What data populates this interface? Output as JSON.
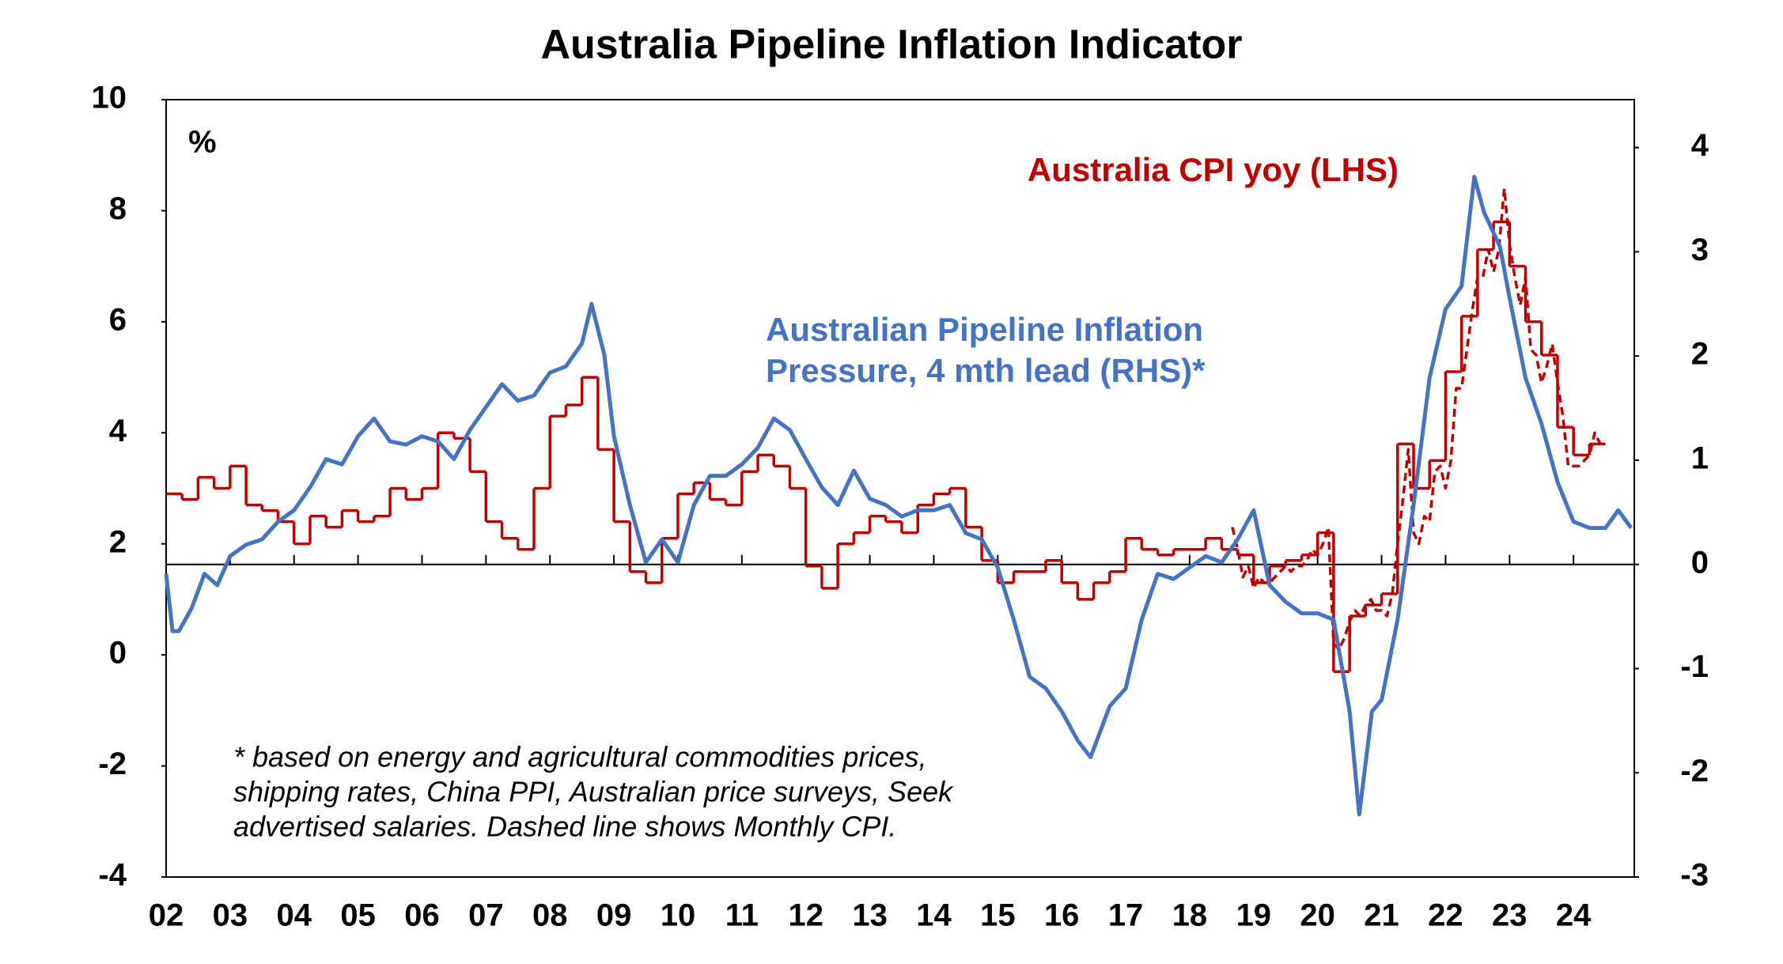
{
  "chart_data": {
    "type": "line",
    "title": "Australia Pipeline Inflation Indicator",
    "unit_label": "%",
    "footnote": [
      "* based on energy and agricultural commodities prices,",
      "shipping rates, China PPI, Australian price surveys, Seek",
      "advertised salaries. Dashed line shows Monthly CPI."
    ],
    "xlim": [
      2002,
      2024.95
    ],
    "xticks": [
      {
        "value": 2002,
        "label": "02"
      },
      {
        "value": 2003,
        "label": "03"
      },
      {
        "value": 2004,
        "label": "04"
      },
      {
        "value": 2005,
        "label": "05"
      },
      {
        "value": 2006,
        "label": "06"
      },
      {
        "value": 2007,
        "label": "07"
      },
      {
        "value": 2008,
        "label": "08"
      },
      {
        "value": 2009,
        "label": "09"
      },
      {
        "value": 2010,
        "label": "10"
      },
      {
        "value": 2011,
        "label": "11"
      },
      {
        "value": 2012,
        "label": "12"
      },
      {
        "value": 2013,
        "label": "13"
      },
      {
        "value": 2014,
        "label": "14"
      },
      {
        "value": 2015,
        "label": "15"
      },
      {
        "value": 2016,
        "label": "16"
      },
      {
        "value": 2017,
        "label": "17"
      },
      {
        "value": 2018,
        "label": "18"
      },
      {
        "value": 2019,
        "label": "19"
      },
      {
        "value": 2020,
        "label": "20"
      },
      {
        "value": 2021,
        "label": "21"
      },
      {
        "value": 2022,
        "label": "22"
      },
      {
        "value": 2023,
        "label": "23"
      },
      {
        "value": 2024,
        "label": "24"
      }
    ],
    "ylim": [
      -4,
      10
    ],
    "yticks": [
      -4,
      -2,
      0,
      2,
      4,
      6,
      8,
      10
    ],
    "y2lim": [
      -3,
      4.46
    ],
    "y2ticks": [
      -3,
      -2,
      -1,
      0,
      1,
      2,
      3,
      4
    ],
    "series": [
      {
        "name": "Australia CPI yoy (LHS)",
        "color": "#c00000",
        "style": "step",
        "x": [
          2002,
          2002.25,
          2002.5,
          2002.75,
          2003,
          2003.25,
          2003.5,
          2003.75,
          2004,
          2004.25,
          2004.5,
          2004.75,
          2005,
          2005.25,
          2005.5,
          2005.75,
          2006,
          2006.25,
          2006.5,
          2006.75,
          2007,
          2007.25,
          2007.5,
          2007.75,
          2008,
          2008.25,
          2008.5,
          2008.75,
          2009,
          2009.25,
          2009.5,
          2009.75,
          2010,
          2010.25,
          2010.5,
          2010.75,
          2011,
          2011.25,
          2011.5,
          2011.75,
          2012,
          2012.25,
          2012.5,
          2012.75,
          2013,
          2013.25,
          2013.5,
          2013.75,
          2014,
          2014.25,
          2014.5,
          2014.75,
          2015,
          2015.25,
          2015.5,
          2015.75,
          2016,
          2016.25,
          2016.5,
          2016.75,
          2017,
          2017.25,
          2017.5,
          2017.75,
          2018,
          2018.25,
          2018.5,
          2018.75,
          2019,
          2019.25,
          2019.5,
          2019.75,
          2020,
          2020.25,
          2020.5,
          2020.75,
          2021,
          2021.25,
          2021.5,
          2021.75,
          2022,
          2022.25,
          2022.5,
          2022.75,
          2023,
          2023.25,
          2023.5,
          2023.75,
          2024,
          2024.25
        ],
        "values": [
          2.9,
          2.8,
          3.2,
          3.0,
          3.4,
          2.7,
          2.6,
          2.4,
          2.0,
          2.5,
          2.3,
          2.6,
          2.4,
          2.5,
          3.0,
          2.8,
          3.0,
          4.0,
          3.9,
          3.3,
          2.4,
          2.1,
          1.9,
          3.0,
          4.3,
          4.5,
          5.0,
          3.7,
          2.4,
          1.5,
          1.3,
          2.1,
          2.9,
          3.1,
          2.8,
          2.7,
          3.3,
          3.6,
          3.4,
          3.0,
          1.6,
          1.2,
          2.0,
          2.2,
          2.5,
          2.4,
          2.2,
          2.7,
          2.9,
          3.0,
          2.3,
          1.7,
          1.3,
          1.5,
          1.5,
          1.7,
          1.3,
          1.0,
          1.3,
          1.5,
          2.1,
          1.9,
          1.8,
          1.9,
          1.9,
          2.1,
          1.9,
          1.8,
          1.3,
          1.6,
          1.7,
          1.8,
          2.2,
          -0.3,
          0.7,
          0.9,
          1.1,
          3.8,
          3.0,
          3.5,
          5.1,
          6.1,
          7.3,
          7.8,
          7.0,
          6.0,
          5.4,
          4.1,
          3.6,
          3.8
        ]
      },
      {
        "color": "#c00000",
        "dash": true,
        "x": [
          2018.667,
          2018.75,
          2018.833,
          2018.917,
          2019,
          2019.083,
          2019.167,
          2019.25,
          2019.333,
          2019.417,
          2019.5,
          2019.583,
          2019.667,
          2019.75,
          2019.833,
          2019.917,
          2020,
          2020.083,
          2020.167,
          2020.25,
          2020.333,
          2020.417,
          2020.5,
          2020.583,
          2020.667,
          2020.75,
          2020.833,
          2020.917,
          2021,
          2021.083,
          2021.167,
          2021.25,
          2021.333,
          2021.417,
          2021.5,
          2021.583,
          2021.667,
          2021.75,
          2021.833,
          2021.917,
          2022,
          2022.083,
          2022.167,
          2022.25,
          2022.333,
          2022.417,
          2022.5,
          2022.583,
          2022.667,
          2022.75,
          2022.833,
          2022.917,
          2023,
          2023.083,
          2023.167,
          2023.25,
          2023.333,
          2023.417,
          2023.5,
          2023.583,
          2023.667,
          2023.75,
          2023.833,
          2023.917,
          2024,
          2024.083,
          2024.167,
          2024.25,
          2024.333,
          2024.417
        ],
        "values": [
          2.3,
          1.9,
          1.4,
          1.6,
          1.2,
          1.4,
          1.3,
          1.3,
          1.4,
          1.5,
          1.6,
          1.5,
          1.6,
          1.6,
          1.7,
          1.9,
          1.8,
          2.0,
          2.3,
          0.2,
          0.1,
          0.3,
          0.6,
          0.8,
          0.7,
          0.9,
          1.0,
          0.8,
          0.8,
          0.7,
          1.1,
          2.0,
          2.8,
          3.7,
          2.2,
          2.0,
          2.5,
          2.4,
          3.3,
          3.4,
          3.0,
          3.5,
          4.8,
          4.8,
          5.5,
          6.2,
          6.8,
          6.8,
          7.3,
          6.9,
          7.3,
          8.4,
          7.4,
          6.8,
          6.3,
          6.8,
          5.5,
          5.4,
          4.9,
          5.2,
          5.6,
          4.9,
          4.3,
          3.4,
          3.4,
          3.4,
          3.5,
          3.6,
          4.0,
          3.8
        ]
      },
      {
        "name": [
          "Australian Pipeline Inflation",
          "Pressure, 4 mth lead (RHS)*"
        ],
        "color": "#4472c4",
        "axis": "y2",
        "x": [
          2002,
          2002.1,
          2002.2,
          2002.4,
          2002.6,
          2002.8,
          2003,
          2003.25,
          2003.5,
          2003.75,
          2004,
          2004.25,
          2004.5,
          2004.75,
          2005,
          2005.25,
          2005.5,
          2005.75,
          2006,
          2006.25,
          2006.5,
          2006.75,
          2007,
          2007.25,
          2007.5,
          2007.75,
          2008,
          2008.25,
          2008.5,
          2008.65,
          2008.85,
          2009,
          2009.25,
          2009.5,
          2009.75,
          2010,
          2010.25,
          2010.5,
          2010.75,
          2011,
          2011.25,
          2011.5,
          2011.75,
          2012,
          2012.25,
          2012.5,
          2012.75,
          2013,
          2013.25,
          2013.5,
          2013.75,
          2014,
          2014.25,
          2014.5,
          2014.75,
          2015,
          2015.25,
          2015.5,
          2015.75,
          2016,
          2016.25,
          2016.45,
          2016.75,
          2017,
          2017.25,
          2017.5,
          2017.75,
          2018,
          2018.25,
          2018.5,
          2018.75,
          2019,
          2019.25,
          2019.5,
          2019.75,
          2020,
          2020.25,
          2020.5,
          2020.65,
          2020.85,
          2021,
          2021.25,
          2021.5,
          2021.75,
          2022,
          2022.25,
          2022.45,
          2022.6,
          2022.85,
          2023,
          2023.25,
          2023.5,
          2023.75,
          2024,
          2024.25,
          2024.5,
          2024.7,
          2024.9
        ],
        "values": [
          -0.09,
          -0.64,
          -0.64,
          -0.42,
          -0.09,
          -0.2,
          0.08,
          0.19,
          0.24,
          0.41,
          0.52,
          0.74,
          1.01,
          0.96,
          1.23,
          1.4,
          1.18,
          1.15,
          1.23,
          1.18,
          1.01,
          1.29,
          1.51,
          1.73,
          1.57,
          1.62,
          1.84,
          1.9,
          2.12,
          2.5,
          2.01,
          1.23,
          0.57,
          0.02,
          0.24,
          0.02,
          0.57,
          0.85,
          0.85,
          0.96,
          1.12,
          1.4,
          1.29,
          1.01,
          0.74,
          0.57,
          0.9,
          0.63,
          0.57,
          0.46,
          0.52,
          0.52,
          0.57,
          0.3,
          0.24,
          -0.03,
          -0.53,
          -1.08,
          -1.19,
          -1.41,
          -1.69,
          -1.85,
          -1.36,
          -1.19,
          -0.53,
          -0.09,
          -0.14,
          -0.03,
          0.08,
          0.02,
          0.24,
          0.52,
          -0.2,
          -0.36,
          -0.47,
          -0.47,
          -0.53,
          -1.41,
          -2.4,
          -1.41,
          -1.3,
          -0.53,
          0.57,
          1.79,
          2.45,
          2.67,
          3.72,
          3.38,
          3.05,
          2.56,
          1.79,
          1.35,
          0.79,
          0.41,
          0.35,
          0.35,
          0.52,
          0.35
        ]
      }
    ]
  }
}
